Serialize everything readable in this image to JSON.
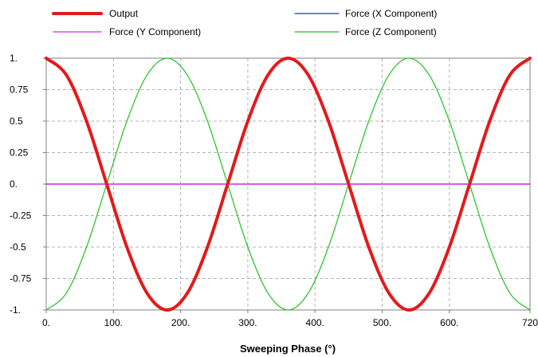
{
  "chart_data": {
    "type": "line",
    "xlabel": "Sweeping Phase (°)",
    "ylabel": "",
    "xlim": [
      0,
      720
    ],
    "ylim": [
      -1,
      1
    ],
    "grid": true,
    "legend_position": "top",
    "x_ticks": [
      {
        "value": 0,
        "label": "0."
      },
      {
        "value": 100,
        "label": "100."
      },
      {
        "value": 200,
        "label": "200."
      },
      {
        "value": 300,
        "label": "300."
      },
      {
        "value": 400,
        "label": "400."
      },
      {
        "value": 500,
        "label": "500."
      },
      {
        "value": 600,
        "label": "600."
      },
      {
        "value": 720,
        "label": "720"
      }
    ],
    "y_ticks": [
      {
        "value": 1,
        "label": "1."
      },
      {
        "value": 0.75,
        "label": "0.75"
      },
      {
        "value": 0.5,
        "label": "0.5"
      },
      {
        "value": 0.25,
        "label": "0.25"
      },
      {
        "value": 0,
        "label": "0."
      },
      {
        "value": -0.25,
        "label": "-0.25"
      },
      {
        "value": -0.5,
        "label": "-0.5"
      },
      {
        "value": -0.75,
        "label": "-0.75"
      },
      {
        "value": -1,
        "label": "-1."
      }
    ],
    "x": [
      0,
      30,
      60,
      90,
      120,
      150,
      180,
      210,
      240,
      270,
      300,
      330,
      360,
      390,
      420,
      450,
      480,
      510,
      540,
      570,
      600,
      630,
      660,
      690,
      720
    ],
    "series": [
      {
        "name": "Output",
        "color": "#e31a1c",
        "values": [
          1,
          0.866,
          0.5,
          0,
          -0.5,
          -0.866,
          -1,
          -0.866,
          -0.5,
          0,
          0.5,
          0.866,
          1,
          0.866,
          0.5,
          0,
          -0.5,
          -0.866,
          -1,
          -0.866,
          -0.5,
          0,
          0.5,
          0.866,
          1
        ]
      },
      {
        "name": "Force (X Component)",
        "color": "#1a33b3",
        "values": [
          0,
          0,
          0,
          0,
          0,
          0,
          0,
          0,
          0,
          0,
          0,
          0,
          0,
          0,
          0,
          0,
          0,
          0,
          0,
          0,
          0,
          0,
          0,
          0,
          0
        ]
      },
      {
        "name": "Force (Y Component)",
        "color": "#e020e0",
        "values": [
          0,
          0,
          0,
          0,
          0,
          0,
          0,
          0,
          0,
          0,
          0,
          0,
          0,
          0,
          0,
          0,
          0,
          0,
          0,
          0,
          0,
          0,
          0,
          0,
          0
        ]
      },
      {
        "name": "Force (Z Component)",
        "color": "#22c022",
        "values": [
          -1,
          -0.866,
          -0.5,
          0,
          0.5,
          0.866,
          1,
          0.866,
          0.5,
          0,
          -0.5,
          -0.866,
          -1,
          -0.866,
          -0.5,
          0,
          0.5,
          0.866,
          1,
          0.866,
          0.5,
          0,
          -0.5,
          -0.866,
          -1
        ]
      }
    ]
  }
}
